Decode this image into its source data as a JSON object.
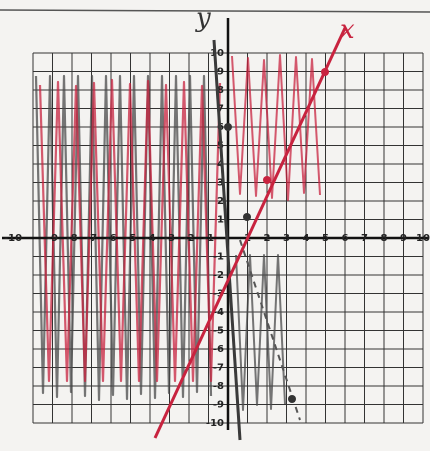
{
  "graph": {
    "x_label": "x",
    "y_label": "y",
    "x_ticks": [
      -10,
      -9,
      -8,
      -7,
      -6,
      -5,
      -4,
      -3,
      -2,
      -1,
      1,
      2,
      3,
      4,
      5,
      6,
      7,
      8,
      9,
      10
    ],
    "y_ticks": [
      -10,
      -9,
      -8,
      -7,
      -6,
      -5,
      -4,
      -3,
      -2,
      -1,
      1,
      2,
      3,
      4,
      5,
      6,
      7,
      8,
      9,
      10
    ]
  }
}
